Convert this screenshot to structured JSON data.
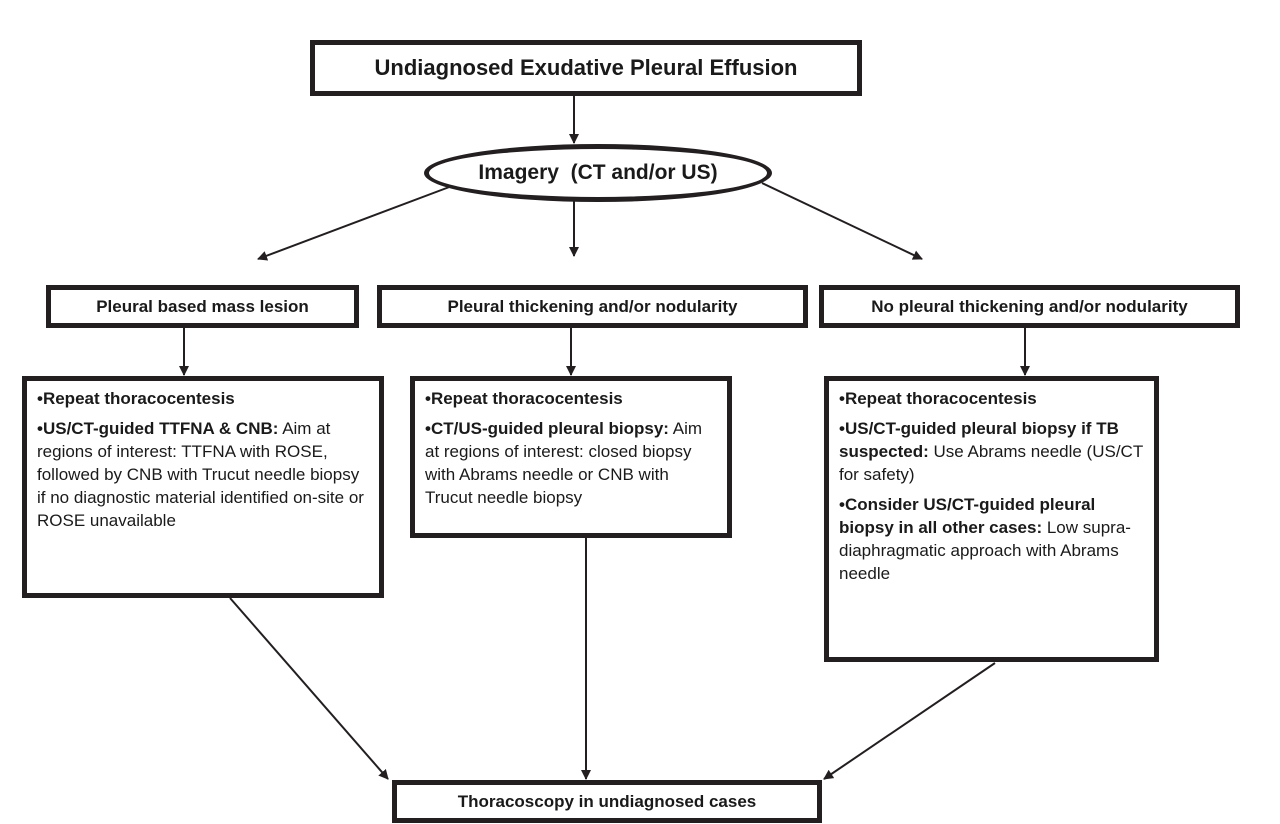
{
  "top_box": "Undiagnosed Exudative Pleural Effusion",
  "imagery": "Imagery  (CT and/or US)",
  "branches": [
    {
      "heading": "Pleural based mass lesion",
      "items": [
        {
          "bold": "•Repeat thoracocentesis",
          "text": ""
        },
        {
          "bold": "•US/CT-guided TTFNA & CNB:",
          "text": " Aim at regions of interest: TTFNA with ROSE, followed by CNB with Trucut needle biopsy if no diagnostic material identified on-site or ROSE unavailable"
        }
      ]
    },
    {
      "heading": "Pleural thickening and/or nodularity",
      "items": [
        {
          "bold": "•Repeat thoracocentesis",
          "text": ""
        },
        {
          "bold": "•CT/US-guided pleural biopsy:",
          "text": " Aim at regions of interest: closed biopsy with Abrams needle or CNB with Trucut needle biopsy"
        }
      ]
    },
    {
      "heading": "No pleural thickening and/or nodularity",
      "items": [
        {
          "bold": "•Repeat thoracocentesis",
          "text": ""
        },
        {
          "bold": "•US/CT-guided pleural biopsy if TB suspected:",
          "text": " Use Abrams needle (US/CT for safety)"
        },
        {
          "bold": "•Consider US/CT-guided pleural biopsy in all other cases:",
          "text": " Low supra-diaphragmatic approach with Abrams needle"
        }
      ]
    }
  ],
  "bottom_box": "Thoracoscopy in undiagnosed cases"
}
